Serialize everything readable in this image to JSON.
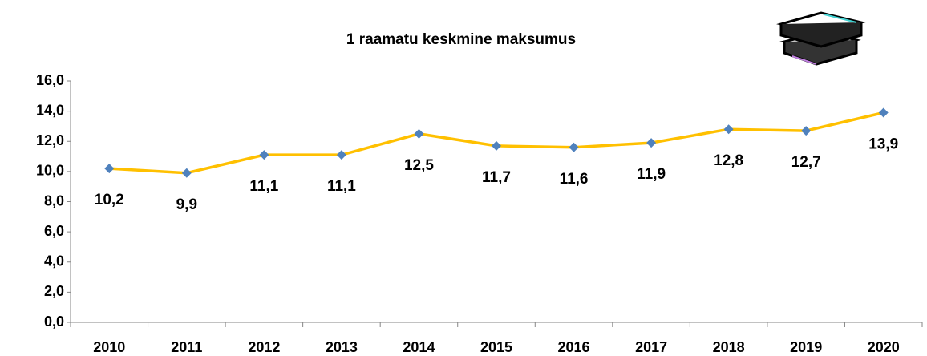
{
  "chart_data": {
    "type": "line",
    "title": "1 raamatu keskmine maksumus",
    "categories": [
      "2010",
      "2011",
      "2012",
      "2013",
      "2014",
      "2015",
      "2016",
      "2017",
      "2018",
      "2019",
      "2020"
    ],
    "series": [
      {
        "color": "#FFC000",
        "marker_color": "#4F81BD",
        "values": [
          10.2,
          9.9,
          11.1,
          11.1,
          12.5,
          11.7,
          11.6,
          11.9,
          12.8,
          12.7,
          13.9
        ],
        "value_labels": [
          "10,2",
          "9,9",
          "11,1",
          "11,1",
          "12,5",
          "11,7",
          "11,6",
          "11,9",
          "12,8",
          "12,7",
          "13,9"
        ]
      }
    ],
    "ylim": [
      0,
      16
    ],
    "yticks": [
      {
        "value": 0,
        "label": "0,0"
      },
      {
        "value": 2,
        "label": "2,0"
      },
      {
        "value": 4,
        "label": "4,0"
      },
      {
        "value": 6,
        "label": "6,0"
      },
      {
        "value": 8,
        "label": "8,0"
      },
      {
        "value": 10,
        "label": "10,0"
      },
      {
        "value": 12,
        "label": "12,0"
      },
      {
        "value": 14,
        "label": "14,0"
      },
      {
        "value": 16,
        "label": "16,0"
      }
    ],
    "grid": false
  }
}
